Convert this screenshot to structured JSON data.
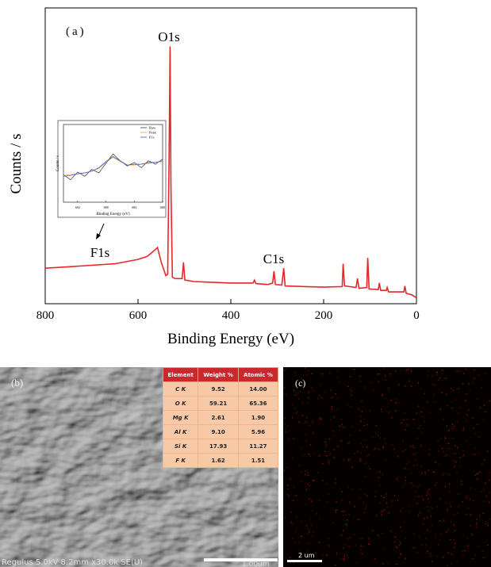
{
  "chart_data": [
    {
      "type": "line",
      "panel_label": "(a)",
      "xlabel": "Binding Energy (eV)",
      "ylabel": "Counts / s",
      "x": [
        800,
        750,
        700,
        650,
        600,
        580,
        565,
        558,
        550,
        540,
        536,
        533,
        531,
        529,
        526,
        520,
        505,
        502,
        499,
        480,
        400,
        352,
        349,
        346,
        320,
        310,
        307,
        304,
        290,
        286,
        283,
        240,
        200,
        160,
        158,
        155,
        130,
        127,
        124,
        107,
        105,
        102,
        82,
        80,
        77,
        65,
        63,
        60,
        27,
        25,
        22,
        10,
        0
      ],
      "series": [
        {
          "color": "#e8262b",
          "values": [
            12,
            12.5,
            13,
            13.5,
            15,
            16,
            18,
            19,
            14,
            9.5,
            10,
            50,
            87,
            40,
            9,
            8.5,
            8.5,
            14,
            8,
            7.5,
            7,
            7,
            8,
            6.8,
            6.5,
            7,
            11,
            6.5,
            6.3,
            12,
            6,
            5.8,
            5.6,
            5.8,
            13.5,
            6,
            5.5,
            8.5,
            5.2,
            5.5,
            15.5,
            5,
            4.8,
            7,
            4.5,
            4.5,
            5.5,
            4,
            4,
            6,
            3.5,
            3,
            2
          ]
        }
      ],
      "xlim": [
        800,
        0
      ],
      "xticks": [
        800,
        600,
        400,
        200,
        0
      ],
      "ylim": [
        0,
        100
      ],
      "annotations": [
        "O1s",
        "C1s",
        "F1s"
      ]
    },
    {
      "type": "line",
      "xlabel": "Binding Energy (eV)",
      "ylabel": "Counts / s",
      "x": [
        694,
        693,
        692,
        691,
        690,
        689,
        688,
        687,
        686,
        685,
        684,
        683,
        682,
        681,
        680
      ],
      "series": [
        {
          "name": "Raw",
          "color": "#333344",
          "values": [
            3.2,
            2.6,
            3.5,
            3.0,
            3.8,
            3.4,
            4.5,
            5.6,
            4.8,
            4.2,
            4.6,
            4.0,
            4.8,
            4.4,
            5.0
          ]
        },
        {
          "name": "Peak",
          "color": "#f0a030",
          "values": [
            3.1,
            3.2,
            3.3,
            3.4,
            3.6,
            3.9,
            4.6,
            5.2,
            4.7,
            4.3,
            4.3,
            4.4,
            4.5,
            4.6,
            4.7
          ]
        },
        {
          "name": "F1s",
          "color": "#3050d0",
          "values": [
            3.0,
            3.1,
            3.3,
            3.4,
            3.6,
            4.0,
            4.7,
            5.3,
            4.8,
            4.3,
            4.4,
            4.4,
            4.6,
            4.6,
            4.8
          ]
        }
      ],
      "xlim": [
        694,
        680
      ],
      "xticks": [
        692,
        688,
        684,
        680
      ],
      "ylim": [
        0,
        9
      ]
    }
  ],
  "sem": {
    "label": "(b)",
    "info": "Regulus 5.0kV 8.2mm x30.0k SE(U)",
    "scale": "1.00um",
    "table": {
      "header": [
        "Element",
        "Weight %",
        "Atomic %"
      ],
      "rows": [
        [
          "C K",
          "9.52",
          "14.00"
        ],
        [
          "O K",
          "59.21",
          "65.36"
        ],
        [
          "Mg K",
          "2.61",
          "1.90"
        ],
        [
          "Al K",
          "9.10",
          "5.96"
        ],
        [
          "Si K",
          "17.93",
          "11.27"
        ],
        [
          "F K",
          "1.62",
          "1.51"
        ]
      ]
    }
  },
  "map": {
    "label": "(c)",
    "scale": "2 um"
  }
}
